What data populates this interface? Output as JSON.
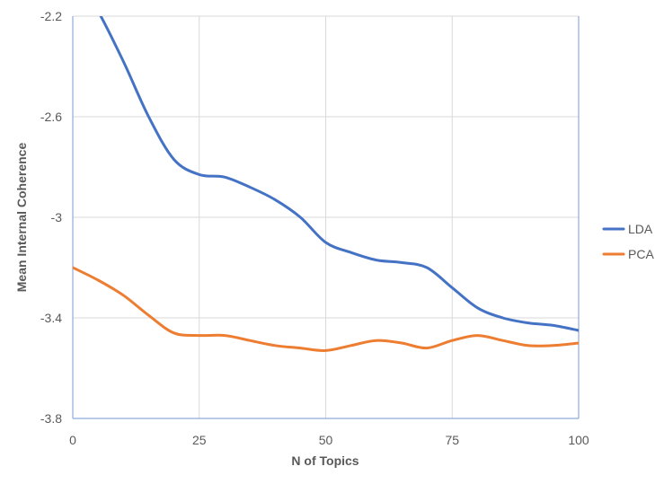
{
  "chart_data": {
    "type": "line",
    "title": "",
    "xlabel": "N of Topics",
    "ylabel": "Mean Internal Coherence",
    "xlim": [
      0,
      100
    ],
    "ylim": [
      -3.8,
      -2.2
    ],
    "x_ticks": [
      "0",
      "25",
      "50",
      "75",
      "100"
    ],
    "y_ticks": [
      "-2.2",
      "-2.6",
      "-3",
      "-3.4",
      "-3.8"
    ],
    "grid": true,
    "legend_position": "right",
    "series": [
      {
        "name": "LDA",
        "color": "#4472C4",
        "x": [
          0,
          5,
          10,
          15,
          20,
          25,
          30,
          35,
          40,
          45,
          50,
          55,
          60,
          65,
          70,
          75,
          80,
          85,
          90,
          95,
          100
        ],
        "y": [
          -2.02,
          -2.18,
          -2.38,
          -2.6,
          -2.77,
          -2.83,
          -2.84,
          -2.88,
          -2.93,
          -3.0,
          -3.1,
          -3.14,
          -3.17,
          -3.18,
          -3.2,
          -3.28,
          -3.36,
          -3.4,
          -3.42,
          -3.43,
          -3.45
        ]
      },
      {
        "name": "PCA",
        "color": "#ED7D31",
        "x": [
          0,
          5,
          10,
          15,
          20,
          25,
          30,
          35,
          40,
          45,
          50,
          55,
          60,
          65,
          70,
          75,
          80,
          85,
          90,
          95,
          100
        ],
        "y": [
          -3.2,
          -3.25,
          -3.31,
          -3.39,
          -3.46,
          -3.47,
          -3.47,
          -3.49,
          -3.51,
          -3.52,
          -3.53,
          -3.51,
          -3.49,
          -3.5,
          -3.52,
          -3.49,
          -3.47,
          -3.49,
          -3.51,
          -3.51,
          -3.5
        ]
      }
    ]
  }
}
